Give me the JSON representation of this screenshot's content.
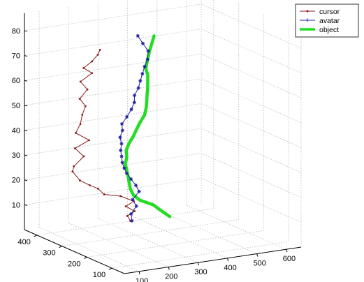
{
  "chart_data": {
    "type": "line",
    "projection": "3d",
    "title": "",
    "xlabel": "",
    "ylabel": "",
    "zlabel": "",
    "grid": true,
    "legend_position": "top-right",
    "axes": {
      "x": {
        "range": [
          50,
          650
        ],
        "ticks": [
          100,
          200,
          300,
          400,
          500,
          600
        ]
      },
      "y": {
        "range": [
          50,
          450
        ],
        "ticks": [
          100,
          200,
          300,
          400
        ]
      },
      "z": {
        "range": [
          0,
          87
        ],
        "ticks": [
          10,
          20,
          30,
          40,
          50,
          60,
          70,
          80
        ]
      }
    },
    "series": [
      {
        "name": "cursor",
        "color": "#8b1a1a",
        "marker": "point",
        "points": [
          [
            325,
            350,
            3
          ],
          [
            318,
            354,
            5
          ],
          [
            335,
            345,
            7
          ],
          [
            312,
            353,
            9
          ],
          [
            333,
            346,
            11
          ],
          [
            300,
            360,
            13
          ],
          [
            240,
            355,
            15
          ],
          [
            215,
            350,
            18
          ],
          [
            170,
            330,
            21
          ],
          [
            130,
            322,
            24
          ],
          [
            120,
            340,
            27
          ],
          [
            110,
            323,
            30
          ],
          [
            150,
            330,
            33
          ],
          [
            130,
            342,
            36
          ],
          [
            170,
            333,
            39
          ],
          [
            135,
            345,
            42
          ],
          [
            155,
            350,
            45
          ],
          [
            170,
            360,
            48
          ],
          [
            185,
            365,
            51
          ],
          [
            170,
            370,
            54
          ],
          [
            200,
            375,
            57
          ],
          [
            185,
            385,
            60
          ],
          [
            220,
            380,
            63
          ],
          [
            200,
            390,
            65
          ],
          [
            230,
            392,
            67
          ],
          [
            255,
            398,
            69
          ],
          [
            260,
            395,
            71
          ]
        ]
      },
      {
        "name": "avatar",
        "color": "#2020a0",
        "marker": "star",
        "points": [
          [
            330,
            350,
            3
          ],
          [
            325,
            347,
            6
          ],
          [
            340,
            344,
            9
          ],
          [
            325,
            341,
            12
          ],
          [
            345,
            339,
            15
          ],
          [
            330,
            334,
            18
          ],
          [
            310,
            330,
            21
          ],
          [
            290,
            324,
            24
          ],
          [
            270,
            310,
            27
          ],
          [
            255,
            300,
            30
          ],
          [
            245,
            291,
            33
          ],
          [
            235,
            283,
            36
          ],
          [
            232,
            276,
            39
          ],
          [
            222,
            270,
            42
          ],
          [
            225,
            264,
            45
          ],
          [
            218,
            258,
            48
          ],
          [
            228,
            250,
            51
          ],
          [
            240,
            246,
            54
          ],
          [
            245,
            240,
            57
          ],
          [
            242,
            236,
            60
          ],
          [
            252,
            232,
            63
          ],
          [
            255,
            228,
            66
          ],
          [
            258,
            223,
            69
          ],
          [
            262,
            219,
            72
          ],
          [
            268,
            214,
            75
          ],
          [
            275,
            220,
            78
          ],
          [
            262,
            226,
            81
          ],
          [
            250,
            232,
            84
          ]
        ]
      },
      {
        "name": "object",
        "color": "#22dd22",
        "marker": "none",
        "points": [
          [
            450,
            340,
            3
          ],
          [
            420,
            340,
            6
          ],
          [
            390,
            335,
            9
          ],
          [
            340,
            330,
            12
          ],
          [
            310,
            320,
            15
          ],
          [
            295,
            315,
            18
          ],
          [
            285,
            308,
            21
          ],
          [
            275,
            300,
            24
          ],
          [
            265,
            294,
            27
          ],
          [
            255,
            288,
            30
          ],
          [
            255,
            282,
            33
          ],
          [
            248,
            276,
            36
          ],
          [
            252,
            270,
            39
          ],
          [
            262,
            264,
            42
          ],
          [
            268,
            258,
            45
          ],
          [
            275,
            252,
            48
          ],
          [
            285,
            246,
            51
          ],
          [
            285,
            240,
            54
          ],
          [
            282,
            234,
            57
          ],
          [
            278,
            228,
            60
          ],
          [
            275,
            222,
            63
          ],
          [
            270,
            216,
            66
          ],
          [
            265,
            210,
            69
          ],
          [
            255,
            206,
            72
          ],
          [
            268,
            214,
            75
          ],
          [
            282,
            222,
            78
          ],
          [
            296,
            228,
            81
          ],
          [
            305,
            232,
            83
          ]
        ]
      }
    ]
  }
}
